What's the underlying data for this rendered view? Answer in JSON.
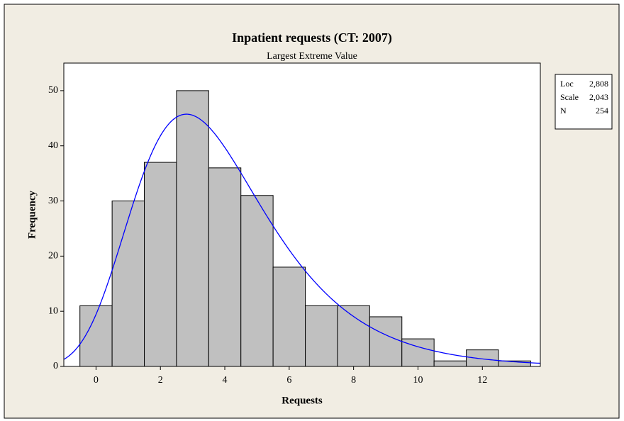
{
  "chart_data": {
    "type": "histogram",
    "title": "Inpatient requests (CT: 2007)",
    "subtitle": "Largest Extreme Value",
    "x_label": "Requests",
    "y_label": "Frequency",
    "bins": [
      -0.5,
      0.5,
      1.5,
      2.5,
      3.5,
      4.5,
      5.5,
      6.5,
      7.5,
      8.5,
      9.5,
      10.5,
      11.5,
      12.5,
      13.5
    ],
    "values": [
      11,
      30,
      37,
      50,
      36,
      31,
      18,
      11,
      11,
      9,
      5,
      1,
      3,
      1
    ],
    "color": "#c0c0c0",
    "curve_color": "#0000ff",
    "xlim": [
      -1,
      13.8
    ],
    "ylim": [
      0,
      55
    ],
    "xticks": [
      0,
      2,
      4,
      6,
      8,
      10,
      12
    ],
    "yticks": [
      0,
      10,
      20,
      30,
      40,
      50
    ],
    "grid": false,
    "stats": {
      "labels": [
        "Loc",
        "Scale",
        "N"
      ],
      "values": [
        {
          "value": 2.808,
          "label": "2,808"
        },
        {
          "value": 2.043,
          "label": "2,043"
        },
        254
      ]
    }
  }
}
